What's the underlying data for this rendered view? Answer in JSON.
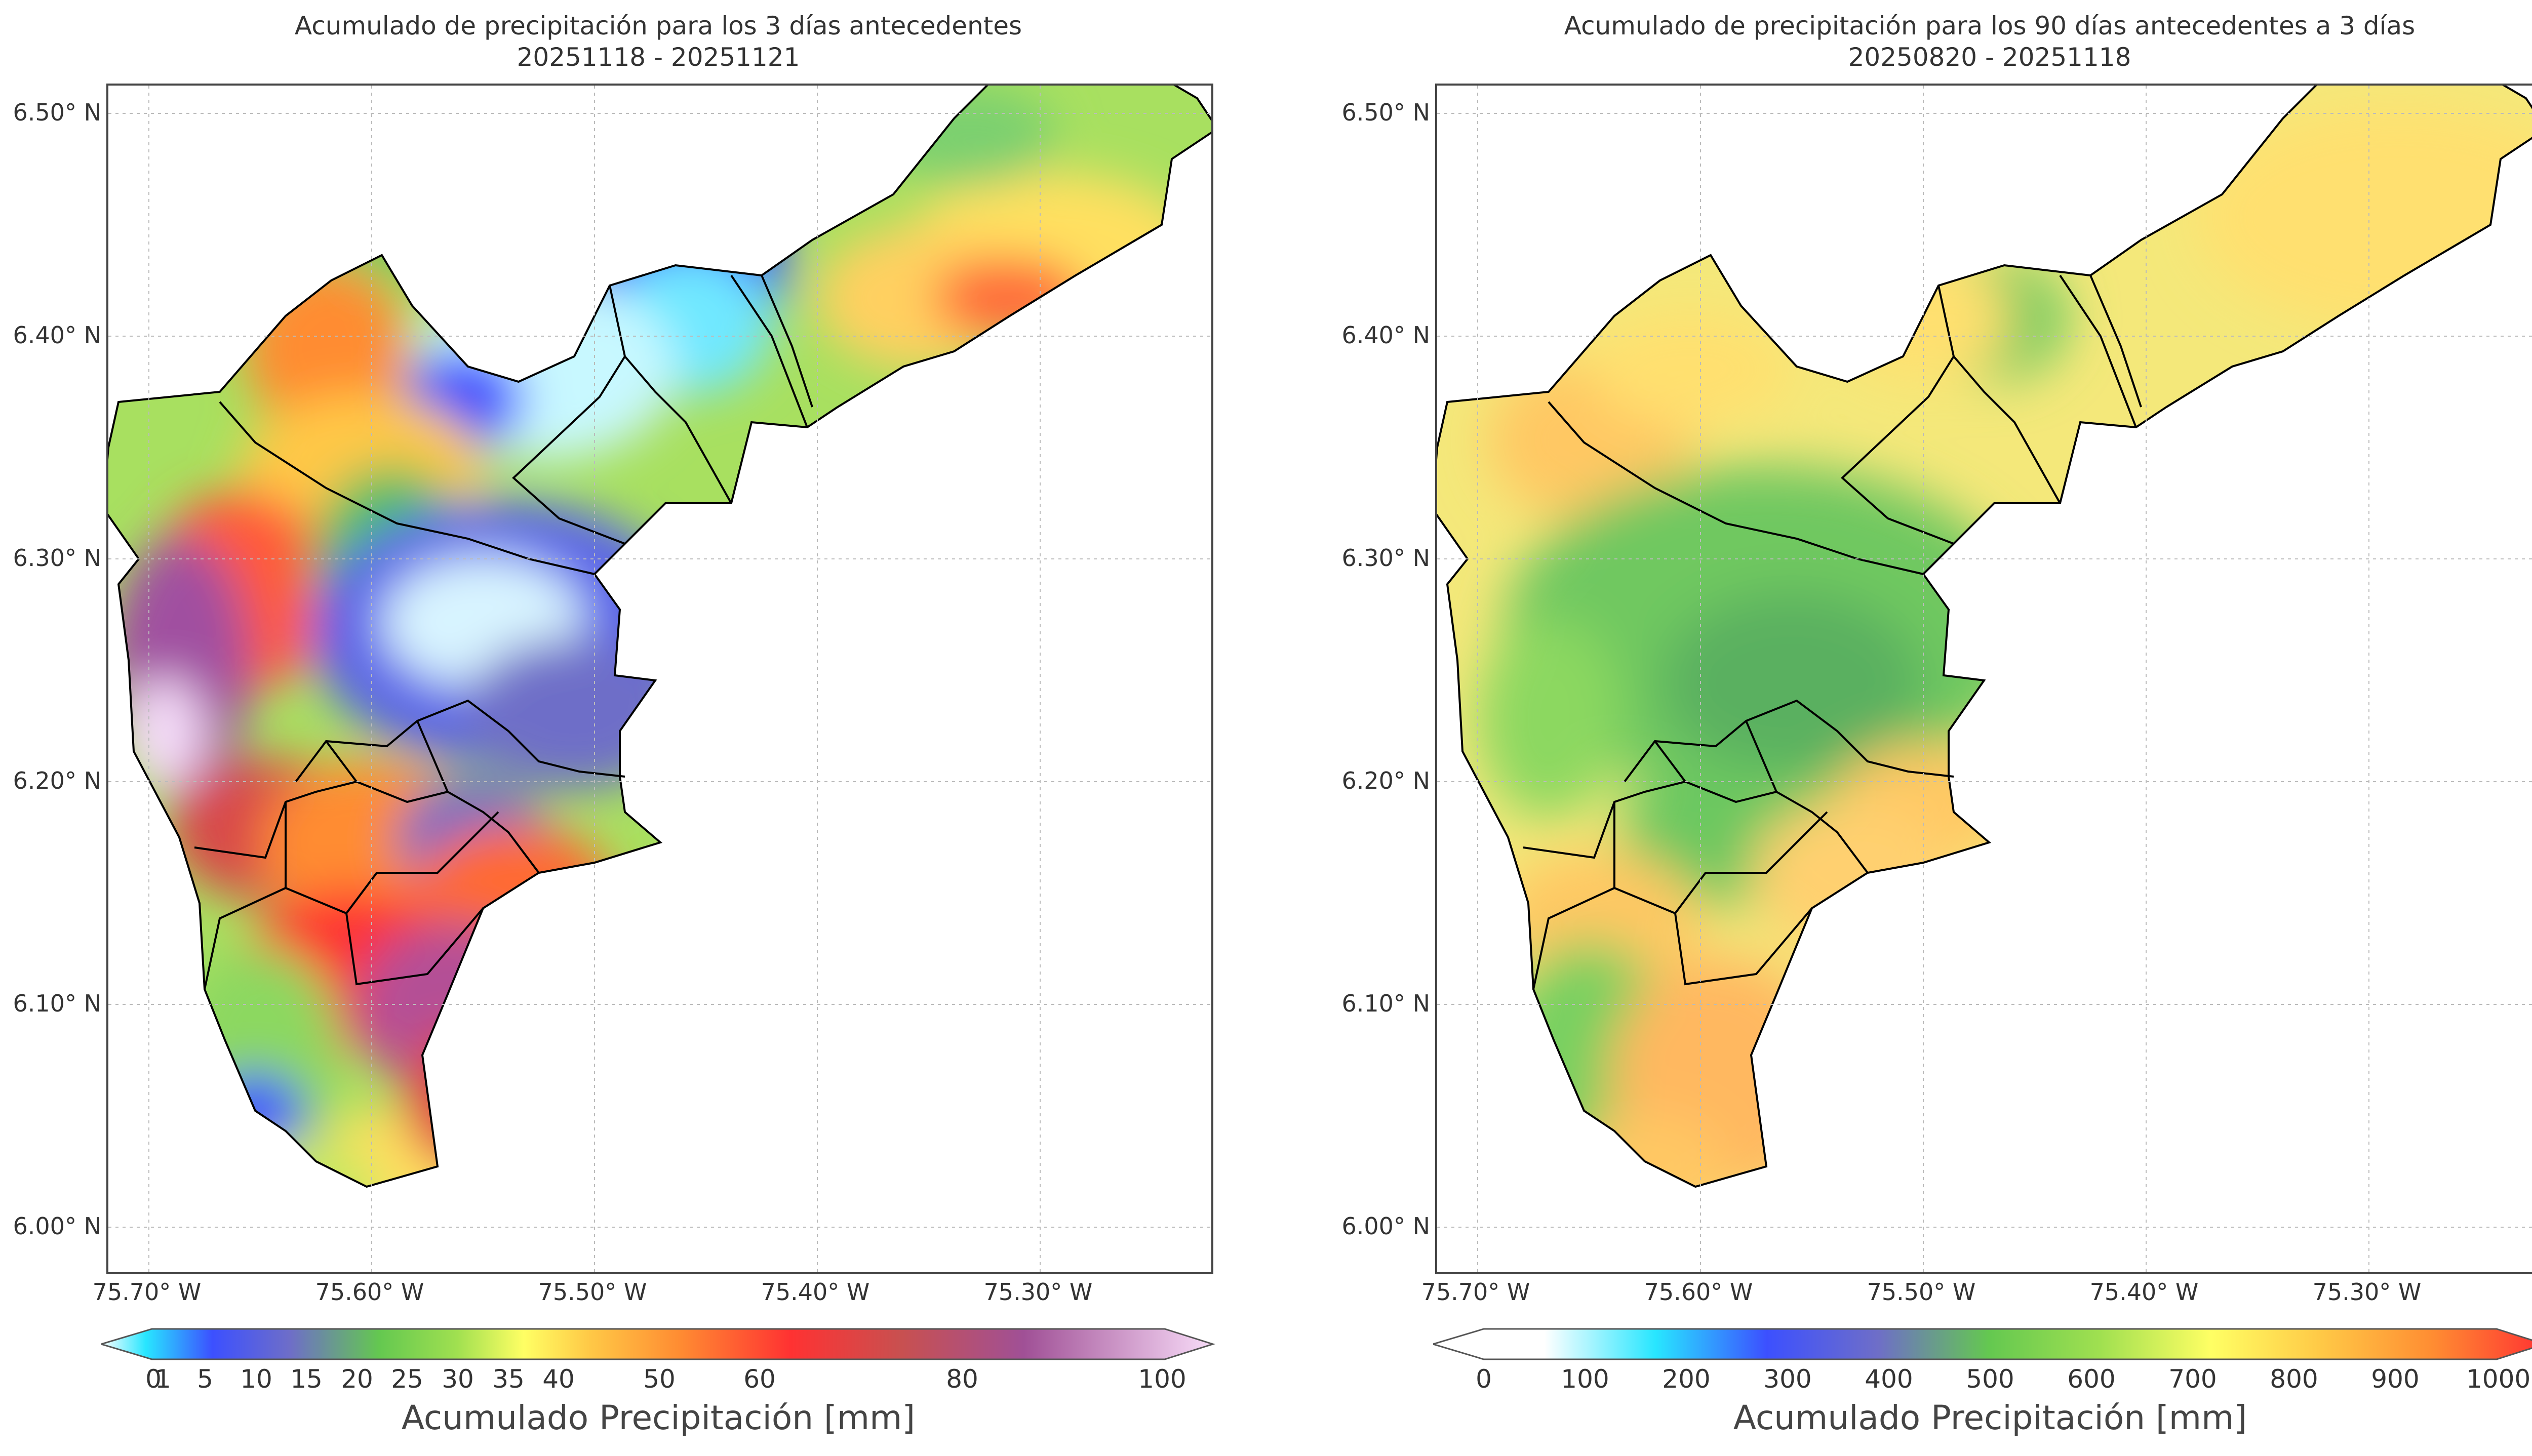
{
  "panels": [
    {
      "title_line1": "Acumulado de precipitación para los 3 días antecedentes",
      "title_line2": "20251118 - 20251121",
      "colorbar_label": "Acumulado Precipitación [mm]",
      "colorbar_ticks": [
        "0",
        "1",
        "5",
        "10",
        "15",
        "20",
        "25",
        "30",
        "35",
        "40",
        "50",
        "60",
        "80",
        "100"
      ]
    },
    {
      "title_line1": "Acumulado de precipitación para los 90 días antecedentes a 3 días",
      "title_line2": "20250820 - 20251118",
      "colorbar_label": "Acumulado Precipitación [mm]",
      "colorbar_ticks": [
        "0",
        "100",
        "200",
        "300",
        "400",
        "500",
        "600",
        "700",
        "800",
        "900",
        "1000"
      ]
    }
  ],
  "y_ticks": [
    "6.50° N",
    "6.40° N",
    "6.30° N",
    "6.20° N",
    "6.10° N",
    "6.00° N"
  ],
  "x_ticks": [
    "75.70° W",
    "75.60° W",
    "75.50° W",
    "75.40° W",
    "75.30° W"
  ],
  "colors": {
    "short_scale": [
      "#ffffff",
      "#28e6ff",
      "#3c50ff",
      "#6e6ec8",
      "#64c850",
      "#a0e050",
      "#ffff64",
      "#ffc846",
      "#ff8c32",
      "#ff3232",
      "#c85050",
      "#a05096",
      "#f0c8f0"
    ],
    "long_scale": [
      "#ffffff",
      "#ffffff",
      "#28e6ff",
      "#3c50ff",
      "#6e6ec8",
      "#64c850",
      "#a0e050",
      "#ffff64",
      "#ffc846",
      "#ff8c32",
      "#ff3232"
    ]
  }
}
